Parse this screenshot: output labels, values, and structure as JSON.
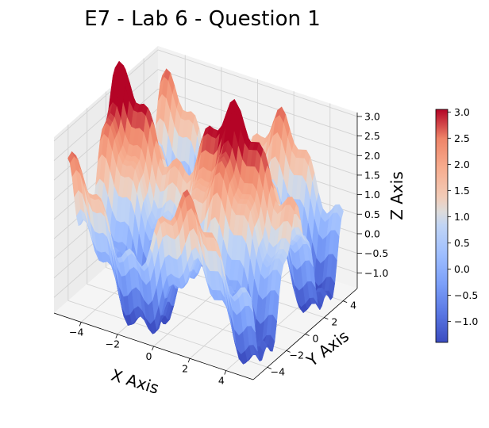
{
  "chart_data": {
    "type": "surface3d",
    "title": "E7 - Lab 6 - Question 1",
    "xlabel": "X Axis",
    "ylabel": "Y Axis",
    "zlabel": "Z Axis",
    "xlim": [
      -5.5,
      5.5
    ],
    "ylim": [
      -5.5,
      5.5
    ],
    "zlim": [
      -1.4,
      3.1
    ],
    "x_ticks": [
      -4,
      -2,
      0,
      2,
      4
    ],
    "y_ticks": [
      -4,
      -2,
      0,
      2,
      4
    ],
    "z_ticks": [
      -1.0,
      -0.5,
      0.0,
      0.5,
      1.0,
      1.5,
      2.0,
      2.5,
      3.0
    ],
    "x_tick_labels": [
      "−4",
      "−2",
      "0",
      "2",
      "4"
    ],
    "y_tick_labels": [
      "−4",
      "−2",
      "0",
      "2",
      "4"
    ],
    "z_tick_labels": [
      "−1.0",
      "−0.5",
      "0.0",
      "0.5",
      "1.0",
      "1.5",
      "2.0",
      "2.5",
      "3.0"
    ],
    "surface_equation": "z = sin(x) + 1.5*cos(y) + 0.3*cos(4x) + 0.3*cos(4y) + 0.9 (approx.)",
    "colormap": "coolwarm",
    "colorbar": {
      "range": [
        -1.4,
        3.05
      ],
      "ticks": [
        -1.0,
        -0.5,
        0.0,
        0.5,
        1.0,
        1.5,
        2.0,
        2.5,
        3.0
      ],
      "tick_labels": [
        "−1.0",
        "−0.5",
        "0.0",
        "0.5",
        "1.0",
        "1.5",
        "2.0",
        "2.5",
        "3.0"
      ]
    },
    "grid": true,
    "legend": "none"
  }
}
